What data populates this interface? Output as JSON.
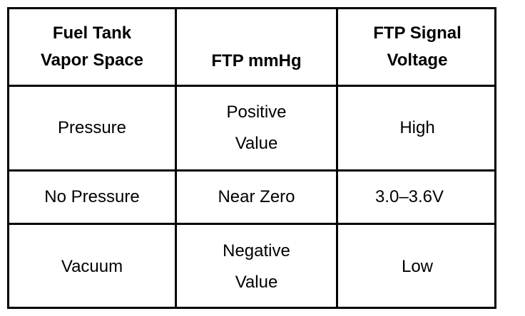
{
  "table": {
    "headers": [
      "Fuel Tank\nVapor Space",
      "FTP mmHg",
      "FTP Signal\nVoltage"
    ],
    "rows": [
      [
        "Pressure",
        "Positive\nValue",
        "High"
      ],
      [
        "No Pressure",
        "Near Zero",
        "3.0–3.6V"
      ],
      [
        "Vacuum",
        "Negative\nValue",
        "Low"
      ]
    ]
  }
}
